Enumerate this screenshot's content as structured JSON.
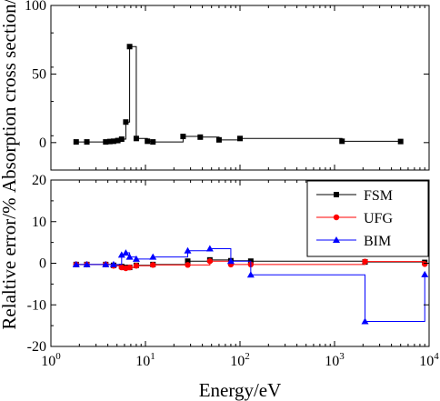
{
  "chart_data": [
    {
      "panel": "top",
      "type": "line",
      "xscale": "log",
      "xlim": [
        1,
        10000
      ],
      "ylim": [
        -20,
        100
      ],
      "ylabel": "Absorption cross section/b",
      "yticks": [
        0,
        50,
        100
      ],
      "drawstyle": "steps-post",
      "series": [
        {
          "color": "#000000",
          "marker": "square",
          "x": [
            1.85,
            2.4,
            3.8,
            4.2,
            4.6,
            5.1,
            5.6,
            6.2,
            6.8,
            8.0,
            10.5,
            12.0,
            25.0,
            38.0,
            60.0,
            100.0,
            1200.0,
            5000.0
          ],
          "y": [
            0.5,
            0.5,
            0.5,
            0.8,
            1.0,
            1.5,
            2.5,
            15.0,
            70.0,
            3.0,
            1.0,
            0.5,
            4.5,
            4.0,
            2.0,
            3.0,
            1.0,
            0.8
          ]
        }
      ]
    },
    {
      "panel": "bottom",
      "type": "line",
      "xscale": "log",
      "xlim": [
        1,
        10000
      ],
      "ylim": [
        -20,
        20
      ],
      "xlabel": "Energy/eV",
      "ylabel": "Relaltive error/%",
      "yticks": [
        -20,
        -10,
        0,
        10,
        20
      ],
      "xticks": [
        1,
        10,
        100,
        1000,
        10000
      ],
      "xtick_labels": [
        {
          "base": "10",
          "exp": "0"
        },
        {
          "base": "10",
          "exp": "1"
        },
        {
          "base": "10",
          "exp": "2"
        },
        {
          "base": "10",
          "exp": "3"
        },
        {
          "base": "10",
          "exp": "4"
        }
      ],
      "legend_position": "top-right",
      "drawstyle": "steps-post",
      "series": [
        {
          "name": "FSM",
          "color": "#000000",
          "marker": "square",
          "x": [
            1.85,
            2.4,
            3.8,
            4.6,
            5.6,
            6.2,
            6.8,
            8.0,
            12.0,
            28.0,
            48.0,
            80.0,
            130.0,
            2100.0,
            9000.0
          ],
          "y": [
            -0.3,
            -0.3,
            -0.3,
            -0.5,
            -0.8,
            -1.0,
            -1.0,
            -0.5,
            -0.3,
            0.5,
            0.8,
            0.6,
            0.5,
            0.3,
            0.2
          ]
        },
        {
          "name": "UFG",
          "color": "#ff0000",
          "marker": "circle",
          "x": [
            1.85,
            2.4,
            3.8,
            4.6,
            5.6,
            6.2,
            6.8,
            8.0,
            12.0,
            28.0,
            48.0,
            80.0,
            130.0,
            2100.0,
            9000.0
          ],
          "y": [
            -0.3,
            -0.3,
            -0.3,
            -0.6,
            -1.0,
            -1.2,
            -1.0,
            -0.6,
            -0.4,
            -0.4,
            0.5,
            -0.3,
            -0.3,
            0.4,
            -0.2
          ]
        },
        {
          "name": "BIM",
          "color": "#0000ff",
          "marker": "triangle",
          "x": [
            1.85,
            2.4,
            3.8,
            4.6,
            5.6,
            6.2,
            6.8,
            8.0,
            12.0,
            28.0,
            48.0,
            80.0,
            130.0,
            2100.0,
            9000.0
          ],
          "y": [
            -0.3,
            -0.3,
            -0.3,
            -0.3,
            2.0,
            2.5,
            1.5,
            1.0,
            1.5,
            3.0,
            3.5,
            0.5,
            -2.8,
            -14.0,
            -2.7
          ]
        }
      ]
    }
  ]
}
